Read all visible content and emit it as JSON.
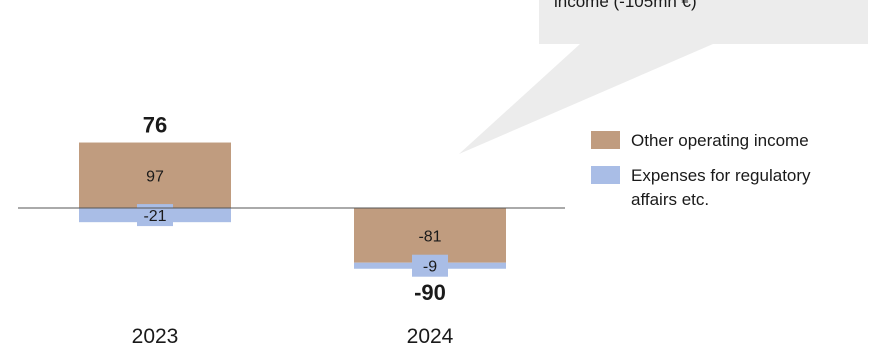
{
  "callout": {
    "text_line1": "",
    "text_line2": "income (-105mn €)"
  },
  "colors": {
    "other_operating_income": "#c09c7f",
    "regulatory_expenses": "#a9bde6",
    "callout_bg": "#ececec",
    "axis": "#555555"
  },
  "chart_data": {
    "type": "bar",
    "stacked": true,
    "categories": [
      "2023",
      "2024"
    ],
    "series": [
      {
        "name": "Other operating income",
        "values": [
          97,
          -81
        ]
      },
      {
        "name": "Expenses for regulatory affairs etc.",
        "values": [
          -21,
          -9
        ]
      }
    ],
    "totals": [
      "76",
      "-90"
    ],
    "segment_labels": [
      [
        "97",
        "-81"
      ],
      [
        "-21",
        "-9"
      ]
    ],
    "legend_position": "right",
    "grid": false
  },
  "legend": {
    "items": [
      {
        "label": "Other operating income",
        "color": "#c09c7f"
      },
      {
        "label": "Expenses for regulatory affairs etc.",
        "color": "#a9bde6"
      }
    ]
  }
}
